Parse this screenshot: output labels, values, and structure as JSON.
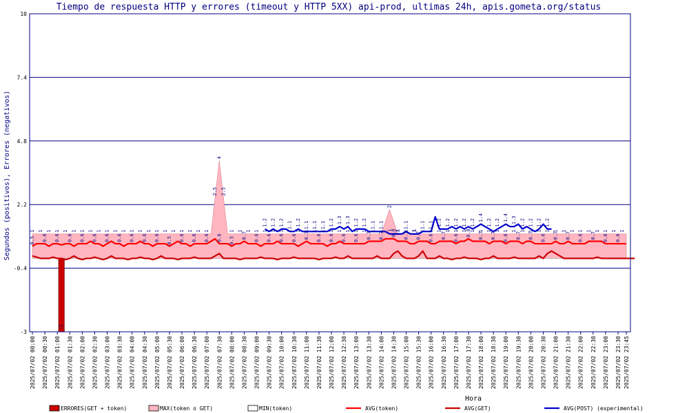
{
  "chart_data": {
    "type": "line",
    "title": "Tiempo de respuesta HTTP y errores (timeout y HTTP 5XX) api-prod, ultimas 24h, apis.gometa.org/status",
    "xlabel": "Hora",
    "ylabel": "Segundos (positivos), Errores (negativos)",
    "ylim": [
      -3,
      10
    ],
    "yticks": [
      "10",
      "7.4",
      "4.8",
      "2.2",
      "-0.4",
      "-3"
    ],
    "ytick_values": [
      10,
      7.4,
      4.8,
      2.2,
      -0.4,
      -3
    ],
    "grid": true,
    "legend_position": "bottom",
    "x_tick_labels": [
      "2025/07/02 00:00",
      "2025/07/02 00:30",
      "2025/07/02 01:00",
      "2025/07/02 01:30",
      "2025/07/02 02:00",
      "2025/07/02 02:30",
      "2025/07/02 03:00",
      "2025/07/02 03:30",
      "2025/07/02 04:00",
      "2025/07/02 04:30",
      "2025/07/02 05:00",
      "2025/07/02 05:30",
      "2025/07/02 06:00",
      "2025/07/02 06:30",
      "2025/07/02 07:00",
      "2025/07/02 07:30",
      "2025/07/02 08:00",
      "2025/07/02 08:30",
      "2025/07/02 09:00",
      "2025/07/02 09:30",
      "2025/07/02 10:00",
      "2025/07/02 10:30",
      "2025/07/02 11:00",
      "2025/07/02 11:30",
      "2025/07/02 12:00",
      "2025/07/02 12:30",
      "2025/07/02 13:00",
      "2025/07/02 13:30",
      "2025/07/02 14:00",
      "2025/07/02 14:30",
      "2025/07/02 15:00",
      "2025/07/02 15:30",
      "2025/07/02 16:00",
      "2025/07/02 16:30",
      "2025/07/02 17:00",
      "2025/07/02 17:30",
      "2025/07/02 18:00",
      "2025/07/02 18:30",
      "2025/07/02 19:00",
      "2025/07/02 19:30",
      "2025/07/02 20:00",
      "2025/07/02 20:30",
      "2025/07/02 21:00",
      "2025/07/02 21:30",
      "2025/07/02 22:00",
      "2025/07/02 22:30",
      "2025/07/02 23:00",
      "2025/07/02 23:30",
      "2025/07/02 23:45"
    ],
    "x_tick_positions": [
      0,
      3,
      6,
      9,
      12,
      15,
      18,
      21,
      24,
      27,
      30,
      33,
      36,
      39,
      42,
      45,
      48,
      51,
      54,
      57,
      60,
      63,
      66,
      69,
      72,
      75,
      78,
      81,
      84,
      87,
      90,
      93,
      96,
      99,
      102,
      105,
      108,
      111,
      114,
      117,
      120,
      123,
      126,
      129,
      132,
      135,
      138,
      141,
      143
    ],
    "n_points": 144,
    "series": [
      {
        "name": "ERRORES(GET + token)",
        "kind": "bar",
        "color": "#cc0000",
        "points": [
          [
            7,
            -3
          ]
        ],
        "labels": [
          "-3"
        ]
      },
      {
        "name": "MAX(token o GET)",
        "kind": "area",
        "color": "#ffb6c1",
        "values": [
          1,
          1,
          1,
          1,
          1,
          1,
          1,
          1,
          1,
          1,
          1,
          1,
          1,
          1,
          1,
          1,
          1,
          1,
          1,
          1,
          1,
          1,
          1,
          1,
          1,
          1,
          1,
          1,
          1,
          1,
          1,
          1,
          1,
          1,
          1,
          1,
          1,
          1,
          1,
          1,
          1,
          1,
          1,
          1,
          2.5,
          4,
          2.5,
          1,
          1,
          1,
          1,
          1,
          1,
          1,
          1,
          1,
          1,
          1,
          1,
          1,
          1,
          1,
          1,
          1,
          1,
          1,
          1,
          1,
          1,
          1,
          1,
          1,
          1,
          1,
          1,
          1,
          1,
          1,
          1,
          1,
          1,
          1,
          1,
          1,
          1,
          1.5,
          2,
          1.5,
          1,
          1,
          1,
          1,
          1,
          1,
          1,
          1,
          1,
          1,
          1,
          1,
          1,
          1,
          1,
          1,
          1,
          1,
          1,
          1,
          1,
          1,
          1,
          1,
          1,
          1,
          1,
          1,
          1,
          1,
          1,
          1,
          1,
          1,
          1,
          1,
          1,
          1,
          1,
          1,
          1,
          1,
          1,
          1,
          1,
          1,
          1,
          1,
          1,
          1,
          1,
          1,
          1,
          1,
          1,
          1
        ]
      },
      {
        "name": "MIN(token)",
        "kind": "area",
        "color": "#ffffff",
        "values": [
          0,
          0,
          0,
          0,
          0,
          0,
          0,
          0,
          0,
          0,
          0,
          0,
          0,
          0,
          0,
          0,
          0,
          0,
          0,
          0,
          0,
          0,
          0,
          0,
          0,
          0,
          0,
          0,
          0,
          0,
          0,
          0,
          0,
          0,
          0,
          0,
          0,
          0,
          0,
          0,
          0,
          0,
          0,
          0,
          0,
          0,
          0,
          0,
          0,
          0,
          0,
          0,
          0,
          0,
          0,
          0,
          0,
          0,
          0,
          0,
          0,
          0,
          0,
          0,
          0,
          0,
          0,
          0,
          0,
          0,
          0,
          0,
          0,
          0,
          0,
          0,
          0,
          0,
          0,
          0,
          0,
          0,
          0,
          0,
          0,
          0,
          0,
          0,
          0,
          0,
          0,
          0,
          0,
          0,
          0,
          0,
          0,
          0,
          0,
          0,
          0,
          0,
          0,
          0,
          0,
          0,
          0,
          0,
          0,
          0,
          0,
          0,
          0,
          0,
          0,
          0,
          0,
          0,
          0,
          0,
          0,
          0,
          0,
          0,
          0,
          0,
          0,
          0,
          0,
          0,
          0,
          0,
          0,
          0,
          0,
          0,
          0,
          0,
          0,
          0,
          0,
          0,
          0,
          0
        ]
      },
      {
        "name": "AVG(token)",
        "kind": "line",
        "color": "#ff0000",
        "values": [
          0.5,
          0.6,
          0.6,
          0.6,
          0.5,
          0.6,
          0.6,
          0.55,
          0.6,
          0.6,
          0.5,
          0.6,
          0.6,
          0.6,
          0.7,
          0.6,
          0.6,
          0.5,
          0.6,
          0.7,
          0.6,
          0.6,
          0.5,
          0.6,
          0.6,
          0.6,
          0.7,
          0.6,
          0.6,
          0.5,
          0.6,
          0.6,
          0.6,
          0.5,
          0.6,
          0.7,
          0.6,
          0.6,
          0.5,
          0.6,
          0.6,
          0.6,
          0.6,
          0.7,
          0.8,
          0.6,
          0.6,
          0.6,
          0.5,
          0.6,
          0.6,
          0.7,
          0.6,
          0.6,
          0.6,
          0.5,
          0.6,
          0.6,
          0.6,
          0.7,
          0.6,
          0.6,
          0.6,
          0.6,
          0.5,
          0.6,
          0.7,
          0.6,
          0.6,
          0.6,
          0.6,
          0.5,
          0.6,
          0.6,
          0.7,
          0.6,
          0.6,
          0.6,
          0.6,
          0.6,
          0.6,
          0.7,
          0.7,
          0.7,
          0.7,
          0.8,
          0.8,
          0.8,
          0.7,
          0.7,
          0.7,
          0.6,
          0.6,
          0.7,
          0.7,
          0.7,
          0.6,
          0.6,
          0.7,
          0.7,
          0.7,
          0.7,
          0.6,
          0.7,
          0.7,
          0.8,
          0.7,
          0.7,
          0.7,
          0.7,
          0.6,
          0.7,
          0.7,
          0.7,
          0.6,
          0.7,
          0.7,
          0.7,
          0.6,
          0.7,
          0.7,
          0.6,
          0.6,
          0.6,
          0.6,
          0.6,
          0.7,
          0.6,
          0.6,
          0.7,
          0.6,
          0.6,
          0.6,
          0.6,
          0.7,
          0.7,
          0.7,
          0.7,
          0.6,
          0.6,
          0.6,
          0.6,
          0.6,
          0.6
        ]
      },
      {
        "name": "AVG(GET)",
        "kind": "line",
        "color": "#cc0000",
        "values": [
          0.1,
          0.05,
          0,
          0,
          0,
          0.05,
          0,
          0,
          -0.05,
          0,
          0.1,
          0,
          -0.05,
          0,
          0,
          0.05,
          0,
          -0.05,
          0,
          0.1,
          0,
          0,
          0,
          -0.05,
          0,
          0,
          0.05,
          0,
          0,
          -0.05,
          0,
          0.1,
          0,
          0,
          0,
          -0.05,
          0,
          0,
          0,
          0.05,
          0,
          0,
          0,
          0,
          0.1,
          0.2,
          0,
          0,
          0,
          0,
          -0.05,
          0,
          0,
          0,
          0,
          0.05,
          0,
          0,
          0,
          -0.05,
          0,
          0,
          0,
          0.05,
          0,
          0,
          0,
          0,
          0,
          -0.05,
          0,
          0,
          0,
          0.05,
          0,
          0,
          0.1,
          0,
          0,
          0,
          0,
          0,
          0,
          0.1,
          0,
          0,
          0,
          0.2,
          0.3,
          0.1,
          0,
          0,
          0,
          0.1,
          0.3,
          0,
          0,
          0,
          0.1,
          0,
          0,
          -0.05,
          0,
          0,
          0.05,
          0,
          0,
          0,
          -0.05,
          0,
          0,
          0.1,
          0,
          0,
          0,
          0,
          0.05,
          0,
          0,
          0,
          0,
          0,
          0.1,
          0,
          0.2,
          0.3,
          0.2,
          0.1,
          0,
          0,
          0,
          0,
          0,
          0,
          0,
          0,
          0.05,
          0,
          0,
          0,
          0,
          0,
          0,
          0,
          0,
          0
        ]
      },
      {
        "name": "AVG(POST) (experimental)",
        "kind": "line",
        "color": "#0000cc",
        "x_start": 56,
        "values": [
          1.2,
          1.1,
          1.2,
          1.1,
          1.2,
          1.2,
          1.1,
          1.1,
          1.2,
          1.1,
          1.1,
          1.1,
          1.1,
          1.1,
          1.1,
          1.1,
          1.2,
          1.2,
          1.3,
          1.2,
          1.3,
          1.1,
          1.2,
          1.2,
          1.2,
          1.1,
          1.1,
          1.1,
          1.1,
          1.1,
          1.0,
          1.0,
          1.0,
          1.0,
          1.1,
          1.0,
          1.0,
          1.0,
          1.1,
          1.1,
          1.1,
          1.7,
          1.2,
          1.2,
          1.2,
          1.3,
          1.2,
          1.3,
          1.2,
          1.3,
          1.2,
          1.3,
          1.4,
          1.3,
          1.2,
          1.1,
          1.2,
          1.3,
          1.4,
          1.3,
          1.3,
          1.4,
          1.2,
          1.3,
          1.2,
          1.1,
          1.2,
          1.4,
          1.2,
          1.2
        ]
      }
    ]
  },
  "legend": [
    {
      "label": "ERRORES(GET + token)",
      "swatch": "box",
      "color": "#cc0000"
    },
    {
      "label": "MAX(token o GET)",
      "swatch": "box",
      "color": "#ffb6c1"
    },
    {
      "label": "MIN(token)",
      "swatch": "box",
      "color": "#ffffff"
    },
    {
      "label": "AVG(token)",
      "swatch": "line",
      "color": "#ff0000"
    },
    {
      "label": "AVG(GET)",
      "swatch": "line",
      "color": "#cc0000"
    },
    {
      "label": "AVG(POST) (experimental)",
      "swatch": "line",
      "color": "#0000cc"
    }
  ]
}
